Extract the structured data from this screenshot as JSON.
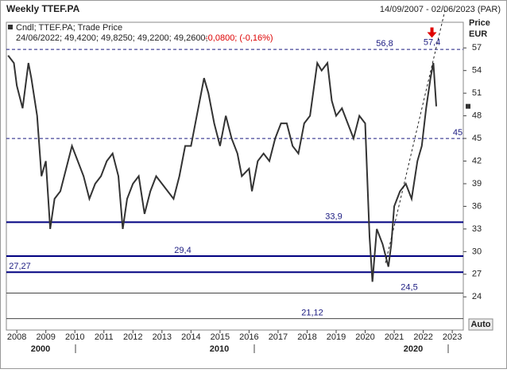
{
  "chart_data": {
    "type": "line",
    "title": "Weekly TTEF.PA",
    "subtitle": "14/09/2007 - 02/06/2023 (PAR)",
    "legend_name": "Cndl; TTEF.PA; Trade Price",
    "legend_values": "24/06/2022; 49,4200; 49,8250; 49,2200; 49,2600;",
    "legend_change": "-0,0800; (-0,16%)",
    "y_label": "Price",
    "y_unit": "EUR",
    "button": "Auto",
    "series": [
      {
        "name": "TTEF.PA",
        "color": "#333333",
        "x": [
          2007.7,
          2007.9,
          2008.0,
          2008.2,
          2008.4,
          2008.5,
          2008.7,
          2008.85,
          2009.0,
          2009.15,
          2009.3,
          2009.5,
          2009.7,
          2009.9,
          2010.1,
          2010.3,
          2010.5,
          2010.7,
          2010.9,
          2011.1,
          2011.3,
          2011.5,
          2011.65,
          2011.8,
          2012.0,
          2012.2,
          2012.4,
          2012.6,
          2012.8,
          2013.0,
          2013.2,
          2013.4,
          2013.6,
          2013.8,
          2014.0,
          2014.2,
          2014.45,
          2014.6,
          2014.8,
          2015.0,
          2015.2,
          2015.4,
          2015.6,
          2015.75,
          2016.0,
          2016.1,
          2016.3,
          2016.5,
          2016.7,
          2016.9,
          2017.1,
          2017.3,
          2017.5,
          2017.7,
          2017.9,
          2018.1,
          2018.35,
          2018.5,
          2018.7,
          2018.85,
          2019.0,
          2019.2,
          2019.4,
          2019.6,
          2019.8,
          2020.0,
          2020.15,
          2020.25,
          2020.4,
          2020.6,
          2020.8,
          2020.9,
          2021.0,
          2021.2,
          2021.4,
          2021.6,
          2021.8,
          2021.95,
          2022.1,
          2022.25,
          2022.35,
          2022.45
        ],
        "values": [
          56,
          55,
          52,
          49,
          55,
          53,
          48,
          40,
          42,
          33,
          37,
          38,
          41,
          44,
          42,
          40,
          37,
          39,
          40,
          42,
          43,
          40,
          33,
          37,
          39,
          40,
          35,
          38,
          40,
          39,
          38,
          37,
          40,
          44,
          44,
          48,
          53,
          51,
          47,
          44,
          48,
          45,
          43,
          40,
          41,
          38,
          42,
          43,
          42,
          45,
          47,
          47,
          44,
          43,
          47,
          48,
          55,
          54,
          55,
          50,
          48,
          49,
          47,
          45,
          48,
          47,
          32,
          26,
          33,
          31,
          28,
          31,
          36,
          38,
          39,
          37,
          42,
          44,
          49,
          53,
          55,
          49.26
        ]
      }
    ],
    "current_price": 49.26,
    "levels": [
      {
        "value": 56.8,
        "label": "56,8"
      },
      {
        "value": 45,
        "label": "45"
      },
      {
        "value": 33.9,
        "label": "33,9"
      },
      {
        "value": 29.4,
        "label": "29,4"
      },
      {
        "value": 27.27,
        "label": "27,27"
      },
      {
        "value": 24.5,
        "label": "24,5"
      },
      {
        "value": 21.12,
        "label": "21,12"
      }
    ],
    "trendline": {
      "x": [
        2020.7,
        2022.75
      ],
      "y": [
        28.5,
        62
      ]
    },
    "arrow": {
      "x": 2022.3,
      "value": 57.4,
      "label": "57,4"
    },
    "xlim": [
      2007.64,
      2023.38
    ],
    "ylim": [
      19.6,
      60.4
    ],
    "xticks": [
      2008,
      2009,
      2010,
      2011,
      2012,
      2013,
      2014,
      2015,
      2016,
      2017,
      2018,
      2019,
      2020,
      2021,
      2022,
      2023
    ],
    "yticks": [
      24,
      27,
      30,
      33,
      36,
      39,
      42,
      45,
      48,
      51,
      54,
      57
    ],
    "decades": [
      2000,
      2010,
      2020
    ]
  }
}
